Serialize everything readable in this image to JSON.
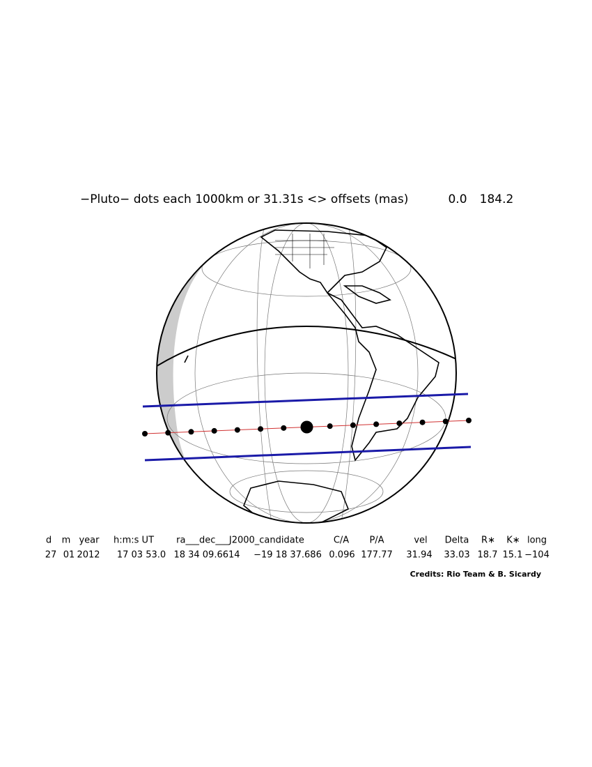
{
  "title": "−Pluto− dots each 1000km or 31.31s <> offsets (mas)",
  "offsets": [
    "0.0",
    "184.2"
  ],
  "table": {
    "header": [
      "d",
      "m",
      "year",
      "h:m:s UT",
      "ra___dec___J2000_candidate",
      "C/A",
      "P/A",
      "vel",
      "Delta",
      "R∗",
      "K∗",
      "long"
    ],
    "row": [
      "27",
      "01",
      "2012",
      "17 03 53.0",
      "18 34 09.6614",
      "−19 18 37.686",
      "0.096",
      "177.77",
      "31.94",
      "33.03",
      "18.7",
      "15.1",
      "−104"
    ]
  },
  "credits": "Credits: Rio Team & B. Sicardy"
}
